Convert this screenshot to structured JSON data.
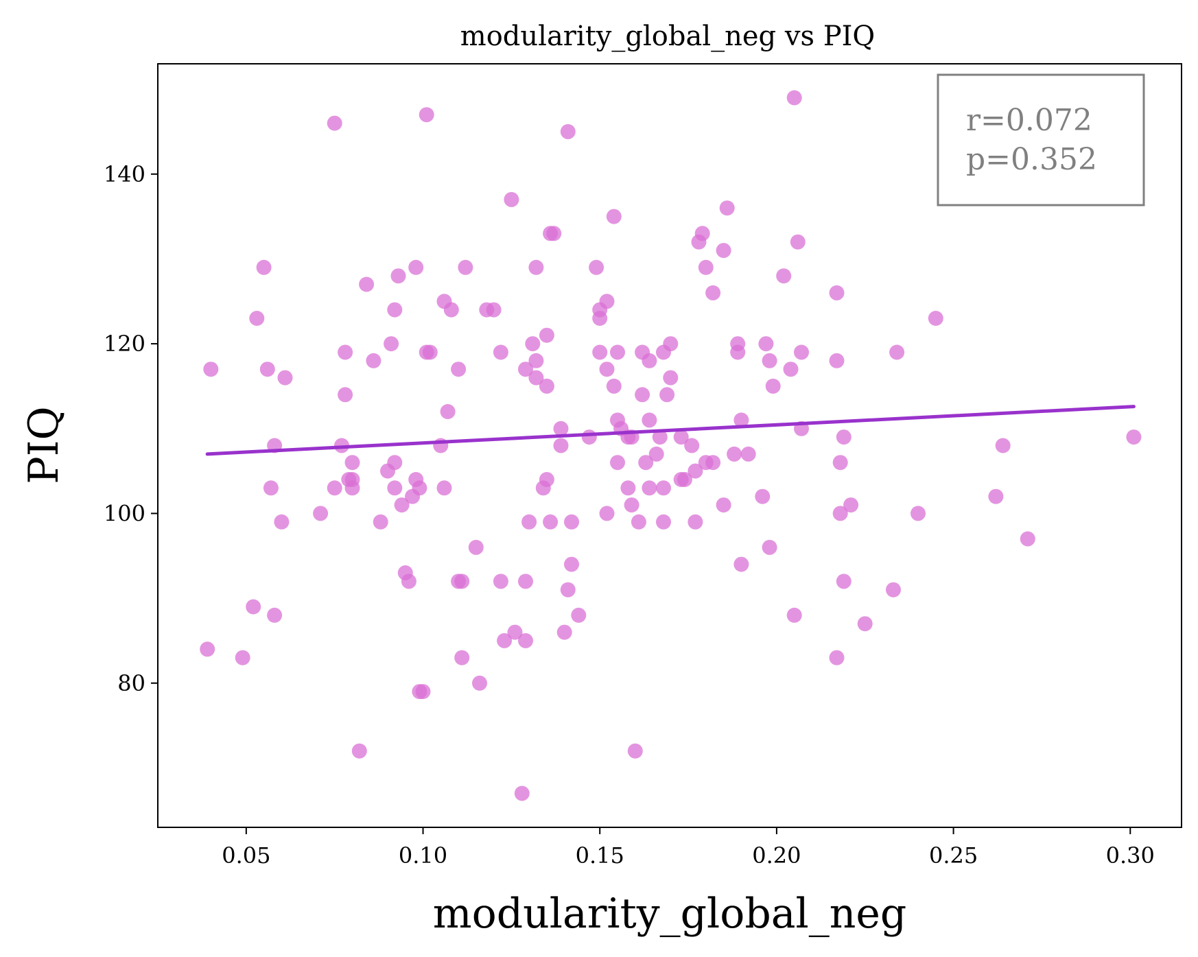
{
  "chart_data": {
    "type": "scatter",
    "title": "modularity_global_neg vs PIQ",
    "xlabel": "modularity_global_neg",
    "ylabel": "PIQ",
    "xlim": [
      0.025,
      0.3145
    ],
    "ylim": [
      63,
      153
    ],
    "xticks": [
      "0.05",
      "0.10",
      "0.15",
      "0.20",
      "0.25",
      "0.30"
    ],
    "xtick_values": [
      0.05,
      0.1,
      0.15,
      0.2,
      0.25,
      0.3
    ],
    "yticks": [
      "80",
      "100",
      "120",
      "140"
    ],
    "ytick_values": [
      80,
      100,
      120,
      140
    ],
    "grid": false,
    "point_color": "#da70d6",
    "line_color": "#9932cc",
    "annotation": {
      "line1": "r=0.072",
      "line2": "p=0.352",
      "position": "top-right",
      "color": "#808080"
    },
    "fit_line": {
      "x": [
        0.039,
        0.301
      ],
      "y": [
        107.0,
        112.6
      ]
    },
    "points": [
      [
        0.039,
        84
      ],
      [
        0.04,
        117
      ],
      [
        0.049,
        83
      ],
      [
        0.052,
        89
      ],
      [
        0.053,
        123
      ],
      [
        0.055,
        129
      ],
      [
        0.056,
        117
      ],
      [
        0.057,
        103
      ],
      [
        0.058,
        88
      ],
      [
        0.058,
        108
      ],
      [
        0.06,
        99
      ],
      [
        0.061,
        116
      ],
      [
        0.071,
        100
      ],
      [
        0.075,
        146
      ],
      [
        0.075,
        103
      ],
      [
        0.077,
        108
      ],
      [
        0.078,
        119
      ],
      [
        0.078,
        114
      ],
      [
        0.079,
        104
      ],
      [
        0.08,
        106
      ],
      [
        0.08,
        104
      ],
      [
        0.08,
        103
      ],
      [
        0.082,
        72
      ],
      [
        0.084,
        127
      ],
      [
        0.086,
        118
      ],
      [
        0.088,
        99
      ],
      [
        0.09,
        105
      ],
      [
        0.091,
        120
      ],
      [
        0.092,
        124
      ],
      [
        0.092,
        103
      ],
      [
        0.092,
        106
      ],
      [
        0.093,
        128
      ],
      [
        0.094,
        101
      ],
      [
        0.095,
        93
      ],
      [
        0.096,
        92
      ],
      [
        0.097,
        102
      ],
      [
        0.098,
        104
      ],
      [
        0.098,
        129
      ],
      [
        0.099,
        103
      ],
      [
        0.099,
        79
      ],
      [
        0.1,
        79
      ],
      [
        0.101,
        147
      ],
      [
        0.101,
        119
      ],
      [
        0.102,
        119
      ],
      [
        0.105,
        108
      ],
      [
        0.106,
        125
      ],
      [
        0.106,
        103
      ],
      [
        0.107,
        112
      ],
      [
        0.108,
        124
      ],
      [
        0.11,
        117
      ],
      [
        0.11,
        92
      ],
      [
        0.111,
        92
      ],
      [
        0.111,
        83
      ],
      [
        0.112,
        129
      ],
      [
        0.115,
        96
      ],
      [
        0.116,
        80
      ],
      [
        0.118,
        124
      ],
      [
        0.12,
        124
      ],
      [
        0.122,
        119
      ],
      [
        0.122,
        92
      ],
      [
        0.123,
        85
      ],
      [
        0.125,
        137
      ],
      [
        0.126,
        86
      ],
      [
        0.128,
        67
      ],
      [
        0.129,
        85
      ],
      [
        0.129,
        92
      ],
      [
        0.129,
        117
      ],
      [
        0.13,
        99
      ],
      [
        0.131,
        120
      ],
      [
        0.132,
        118
      ],
      [
        0.132,
        129
      ],
      [
        0.132,
        116
      ],
      [
        0.134,
        103
      ],
      [
        0.135,
        115
      ],
      [
        0.135,
        121
      ],
      [
        0.135,
        104
      ],
      [
        0.136,
        99
      ],
      [
        0.136,
        133
      ],
      [
        0.137,
        133
      ],
      [
        0.139,
        110
      ],
      [
        0.139,
        108
      ],
      [
        0.14,
        86
      ],
      [
        0.141,
        91
      ],
      [
        0.141,
        145
      ],
      [
        0.142,
        99
      ],
      [
        0.142,
        94
      ],
      [
        0.144,
        88
      ],
      [
        0.147,
        109
      ],
      [
        0.149,
        129
      ],
      [
        0.15,
        124
      ],
      [
        0.15,
        123
      ],
      [
        0.15,
        119
      ],
      [
        0.152,
        100
      ],
      [
        0.152,
        125
      ],
      [
        0.152,
        117
      ],
      [
        0.154,
        115
      ],
      [
        0.154,
        135
      ],
      [
        0.155,
        119
      ],
      [
        0.155,
        111
      ],
      [
        0.155,
        106
      ],
      [
        0.156,
        110
      ],
      [
        0.158,
        103
      ],
      [
        0.158,
        109
      ],
      [
        0.159,
        101
      ],
      [
        0.159,
        109
      ],
      [
        0.16,
        72
      ],
      [
        0.161,
        99
      ],
      [
        0.162,
        114
      ],
      [
        0.162,
        119
      ],
      [
        0.163,
        106
      ],
      [
        0.164,
        118
      ],
      [
        0.164,
        103
      ],
      [
        0.164,
        111
      ],
      [
        0.166,
        107
      ],
      [
        0.167,
        109
      ],
      [
        0.168,
        103
      ],
      [
        0.168,
        99
      ],
      [
        0.168,
        119
      ],
      [
        0.169,
        114
      ],
      [
        0.17,
        120
      ],
      [
        0.17,
        116
      ],
      [
        0.173,
        109
      ],
      [
        0.173,
        104
      ],
      [
        0.174,
        104
      ],
      [
        0.176,
        108
      ],
      [
        0.177,
        99
      ],
      [
        0.177,
        105
      ],
      [
        0.178,
        132
      ],
      [
        0.179,
        133
      ],
      [
        0.18,
        129
      ],
      [
        0.18,
        106
      ],
      [
        0.182,
        126
      ],
      [
        0.182,
        106
      ],
      [
        0.185,
        101
      ],
      [
        0.185,
        131
      ],
      [
        0.186,
        136
      ],
      [
        0.188,
        107
      ],
      [
        0.189,
        120
      ],
      [
        0.189,
        119
      ],
      [
        0.19,
        111
      ],
      [
        0.19,
        94
      ],
      [
        0.192,
        107
      ],
      [
        0.196,
        102
      ],
      [
        0.197,
        120
      ],
      [
        0.198,
        96
      ],
      [
        0.198,
        118
      ],
      [
        0.199,
        115
      ],
      [
        0.202,
        128
      ],
      [
        0.204,
        117
      ],
      [
        0.205,
        88
      ],
      [
        0.205,
        149
      ],
      [
        0.206,
        132
      ],
      [
        0.207,
        119
      ],
      [
        0.207,
        110
      ],
      [
        0.217,
        118
      ],
      [
        0.217,
        126
      ],
      [
        0.217,
        83
      ],
      [
        0.218,
        106
      ],
      [
        0.218,
        100
      ],
      [
        0.219,
        92
      ],
      [
        0.219,
        109
      ],
      [
        0.221,
        101
      ],
      [
        0.225,
        87
      ],
      [
        0.233,
        91
      ],
      [
        0.234,
        119
      ],
      [
        0.24,
        100
      ],
      [
        0.245,
        123
      ],
      [
        0.262,
        102
      ],
      [
        0.264,
        108
      ],
      [
        0.271,
        97
      ],
      [
        0.301,
        109
      ]
    ]
  }
}
